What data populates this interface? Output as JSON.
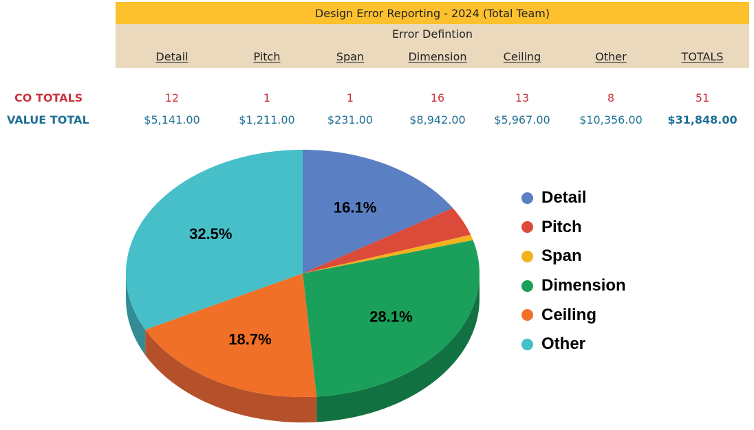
{
  "title": "Design Error Reporting - 2024 (Total Team)",
  "subtitle": "Error Defintion",
  "columns": [
    "Detail",
    "Pitch",
    "Span",
    "Dimension",
    "Ceiling",
    "Other",
    "TOTALS"
  ],
  "rows": {
    "co_totals": {
      "label": "CO TOTALS",
      "values": [
        "12",
        "1",
        "1",
        "16",
        "13",
        "8",
        "51"
      ]
    },
    "value_total": {
      "label": "VALUE TOTAL",
      "values": [
        "$5,141.00",
        "$1,211.00",
        "$231.00",
        "$8,942.00",
        "$5,967.00",
        "$10,356.00",
        "$31,848.00"
      ]
    }
  },
  "colors": {
    "title_bar": "#fdc12e",
    "header_band": "#ead9bd",
    "co_text": "#c9353c",
    "value_text": "#1f6f95"
  },
  "chart_data": {
    "type": "pie",
    "style": "3d",
    "categories": [
      "Detail",
      "Pitch",
      "Span",
      "Dimension",
      "Ceiling",
      "Other"
    ],
    "values": [
      5141,
      1211,
      231,
      8942,
      5967,
      10356
    ],
    "data_labels": [
      "16.1%",
      "",
      "",
      "28.1%",
      "18.7%",
      "32.5%"
    ],
    "colors": [
      "#5a7fc2",
      "#dc4a3a",
      "#f4b11f",
      "#1aa05a",
      "#f07027",
      "#46bfc9"
    ],
    "side_colors": [
      "#3f5d94",
      "#a8352a",
      "#c48b14",
      "#127140",
      "#b5512a",
      "#338c93"
    ],
    "legend": {
      "position": "right",
      "entries": [
        "Detail",
        "Pitch",
        "Span",
        "Dimension",
        "Ceiling",
        "Other"
      ]
    }
  }
}
